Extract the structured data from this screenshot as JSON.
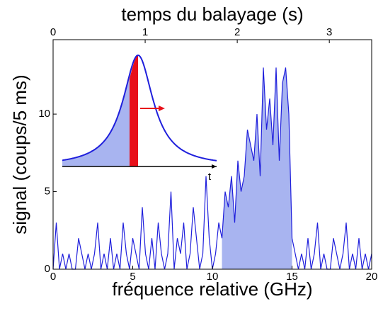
{
  "chart_data": {
    "type": "line",
    "xlabel": "fréquence relative (GHz)",
    "x2label": "temps du balayage (s)",
    "ylabel": "signal (coups/5 ms)",
    "inset_axis_label": "t",
    "x": [
      0,
      0.2,
      0.4,
      0.6,
      0.8,
      1,
      1.2,
      1.4,
      1.6,
      1.8,
      2,
      2.2,
      2.4,
      2.6,
      2.8,
      3,
      3.2,
      3.4,
      3.6,
      3.8,
      4,
      4.2,
      4.4,
      4.6,
      4.8,
      5,
      5.2,
      5.4,
      5.6,
      5.8,
      6,
      6.2,
      6.4,
      6.6,
      6.8,
      7,
      7.2,
      7.4,
      7.6,
      7.8,
      8,
      8.2,
      8.4,
      8.6,
      8.8,
      9,
      9.2,
      9.4,
      9.6,
      9.8,
      10,
      10.2,
      10.4,
      10.6,
      10.8,
      11,
      11.2,
      11.4,
      11.6,
      11.8,
      12,
      12.2,
      12.4,
      12.6,
      12.8,
      13,
      13.2,
      13.4,
      13.6,
      13.8,
      14,
      14.2,
      14.4,
      14.6,
      14.8,
      15,
      15.2,
      15.4,
      15.6,
      15.8,
      16,
      16.2,
      16.4,
      16.6,
      16.8,
      17,
      17.2,
      17.4,
      17.6,
      17.8,
      18,
      18.2,
      18.4,
      18.6,
      18.8,
      19,
      19.2,
      19.4,
      19.6,
      19.8,
      20
    ],
    "series": [
      {
        "color": "#1f1fdc",
        "fill_color": "#a8b4f0",
        "fill_between_x": [
          10.6,
          15.0
        ],
        "values": [
          0,
          3,
          0,
          1,
          0,
          1,
          0,
          0,
          2,
          1,
          0,
          1,
          0,
          1,
          3,
          0,
          1,
          0,
          2,
          0,
          1,
          0,
          3,
          1,
          0,
          2,
          1,
          0,
          4,
          1,
          0,
          2,
          0,
          3,
          1,
          0,
          1,
          5,
          0,
          2,
          1,
          3,
          0,
          1,
          4,
          2,
          0,
          1,
          6,
          2,
          0,
          1,
          3,
          2,
          5,
          4,
          6,
          3,
          7,
          5,
          6,
          9,
          8,
          7,
          10,
          6,
          13,
          9,
          11,
          8,
          13,
          7,
          12,
          13,
          10,
          2,
          1,
          0,
          1,
          0,
          2,
          0,
          1,
          3,
          0,
          1,
          0,
          0,
          2,
          1,
          0,
          1,
          3,
          0,
          1,
          0,
          2,
          0,
          1,
          0,
          1
        ]
      }
    ],
    "xlim": [
      0,
      20
    ],
    "xticks": [
      0,
      5,
      10,
      15,
      20
    ],
    "x2lim": [
      0,
      3.46
    ],
    "x2ticks": [
      0,
      1,
      2,
      3
    ],
    "ylim": [
      0,
      14.8
    ],
    "yticks": [
      0,
      5,
      10
    ]
  }
}
